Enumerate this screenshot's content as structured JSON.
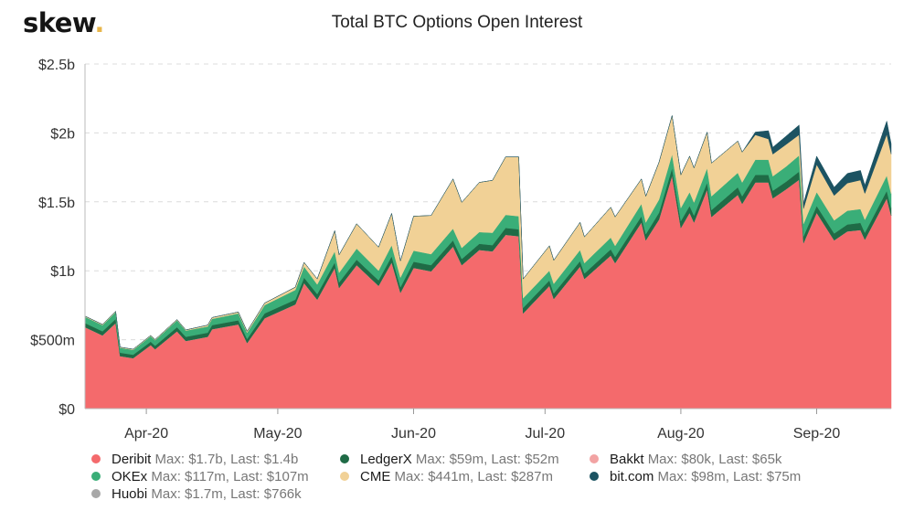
{
  "brand": {
    "name": "skew",
    "dot": "."
  },
  "chart_data": {
    "type": "area",
    "stacked": true,
    "title": "Total BTC Options Open Interest",
    "xlabel": "",
    "ylabel": "",
    "xlim": [
      "2020-03-18",
      "2020-09-18"
    ],
    "ylim": [
      0,
      2500
    ],
    "y_unit": "$m",
    "grid": "horizontal dashed",
    "legend_position": "bottom",
    "y_ticks": [
      {
        "value": 0,
        "label": "$0"
      },
      {
        "value": 500,
        "label": "$500m"
      },
      {
        "value": 1000,
        "label": "$1b"
      },
      {
        "value": 1500,
        "label": "$1.5b"
      },
      {
        "value": 2000,
        "label": "$2b"
      },
      {
        "value": 2500,
        "label": "$2.5b"
      }
    ],
    "x_ticks": [
      {
        "date": "2020-04-01",
        "label": "Apr-20"
      },
      {
        "date": "2020-05-01",
        "label": "May-20"
      },
      {
        "date": "2020-06-01",
        "label": "Jun-20"
      },
      {
        "date": "2020-07-01",
        "label": "Jul-20"
      },
      {
        "date": "2020-08-01",
        "label": "Aug-20"
      },
      {
        "date": "2020-09-01",
        "label": "Sep-20"
      }
    ],
    "x": [
      "2020-03-19",
      "2020-03-22",
      "2020-03-25",
      "2020-03-26",
      "2020-03-29",
      "2020-04-02",
      "2020-04-03",
      "2020-04-08",
      "2020-04-10",
      "2020-04-15",
      "2020-04-16",
      "2020-04-22",
      "2020-04-24",
      "2020-04-28",
      "2020-05-05",
      "2020-05-07",
      "2020-05-10",
      "2020-05-14",
      "2020-05-15",
      "2020-05-19",
      "2020-05-24",
      "2020-05-27",
      "2020-05-29",
      "2020-06-01",
      "2020-06-05",
      "2020-06-10",
      "2020-06-12",
      "2020-06-16",
      "2020-06-19",
      "2020-06-22",
      "2020-06-25",
      "2020-06-26",
      "2020-07-02",
      "2020-07-03",
      "2020-07-09",
      "2020-07-10",
      "2020-07-16",
      "2020-07-17",
      "2020-07-23",
      "2020-07-24",
      "2020-07-27",
      "2020-07-30",
      "2020-08-01",
      "2020-08-03",
      "2020-08-04",
      "2020-08-07",
      "2020-08-08",
      "2020-08-14",
      "2020-08-15",
      "2020-08-18",
      "2020-08-21",
      "2020-08-22",
      "2020-08-25",
      "2020-08-28",
      "2020-08-29",
      "2020-09-01",
      "2020-09-05",
      "2020-09-08",
      "2020-09-11",
      "2020-09-12",
      "2020-09-17",
      "2020-09-18"
    ],
    "series": [
      {
        "name": "Deribit",
        "color": "#f46a6c",
        "max": "$1.7b",
        "last": "$1.4b",
        "values": [
          590,
          530,
          620,
          380,
          365,
          460,
          430,
          560,
          490,
          520,
          575,
          610,
          475,
          655,
          755,
          910,
          790,
          1020,
          875,
          1040,
          890,
          1060,
          840,
          1020,
          995,
          1175,
          1040,
          1150,
          1140,
          1260,
          1250,
          690,
          890,
          795,
          1030,
          940,
          1110,
          1055,
          1350,
          1220,
          1370,
          1690,
          1310,
          1420,
          1350,
          1590,
          1390,
          1550,
          1485,
          1640,
          1640,
          1525,
          1590,
          1660,
          1200,
          1420,
          1220,
          1285,
          1295,
          1225,
          1525,
          1400
        ]
      },
      {
        "name": "Huobi",
        "color": "#a8a8a8",
        "max": "$1.7m",
        "last": "$766k",
        "values": [
          1,
          1,
          1,
          1,
          1,
          1,
          1,
          1,
          1,
          1,
          1,
          1,
          1,
          1,
          1,
          1,
          1,
          1,
          1,
          1,
          1,
          1,
          1,
          1,
          1,
          1,
          1,
          1,
          1,
          1,
          1,
          1,
          1,
          1,
          1,
          1,
          1,
          1,
          1,
          1,
          1,
          1,
          1,
          1,
          1,
          1,
          1,
          1,
          1,
          1,
          1,
          1,
          1,
          1,
          1,
          1,
          1,
          1,
          1,
          1,
          1,
          0.8
        ]
      },
      {
        "name": "Bakkt",
        "color": "#f2a3a3",
        "max": "$80k",
        "last": "$65k",
        "values": [
          0,
          0,
          0,
          0,
          0,
          0,
          0,
          0,
          0,
          0,
          0,
          0,
          0,
          0,
          0,
          0,
          0,
          0,
          0,
          0,
          0,
          0,
          0,
          0,
          0,
          0,
          0,
          0,
          0,
          0,
          0,
          0,
          0,
          0,
          0,
          0,
          0,
          0,
          0,
          0,
          0,
          0,
          0,
          0,
          0,
          0,
          0,
          0,
          0,
          0,
          0,
          0,
          0,
          0,
          0,
          0,
          0,
          0,
          0,
          0,
          0.08,
          0.065
        ]
      },
      {
        "name": "LedgerX",
        "color": "#1f6b46",
        "max": "$59m",
        "last": "$52m",
        "values": [
          30,
          30,
          30,
          25,
          25,
          25,
          25,
          30,
          30,
          30,
          30,
          30,
          30,
          35,
          35,
          40,
          40,
          40,
          40,
          40,
          40,
          45,
          40,
          45,
          45,
          45,
          45,
          45,
          45,
          50,
          50,
          40,
          40,
          40,
          40,
          40,
          45,
          45,
          45,
          45,
          50,
          55,
          50,
          50,
          50,
          50,
          50,
          55,
          55,
          55,
          55,
          55,
          55,
          59,
          50,
          50,
          50,
          50,
          52,
          50,
          55,
          52
        ]
      },
      {
        "name": "OKEx",
        "color": "#3aae78",
        "max": "$117m",
        "last": "$107m",
        "values": [
          45,
          45,
          50,
          35,
          35,
          40,
          40,
          50,
          45,
          45,
          45,
          50,
          45,
          60,
          70,
          80,
          70,
          80,
          70,
          80,
          70,
          80,
          70,
          80,
          80,
          85,
          80,
          85,
          90,
          95,
          95,
          70,
          70,
          70,
          80,
          75,
          85,
          80,
          90,
          85,
          95,
          100,
          95,
          100,
          95,
          105,
          100,
          105,
          100,
          110,
          110,
          105,
          110,
          117,
          90,
          100,
          95,
          100,
          100,
          95,
          110,
          107
        ]
      },
      {
        "name": "CME",
        "color": "#f1d196",
        "max": "$441m",
        "last": "$287m",
        "values": [
          5,
          5,
          5,
          5,
          5,
          5,
          5,
          5,
          5,
          10,
          10,
          10,
          10,
          15,
          20,
          30,
          40,
          150,
          130,
          180,
          170,
          230,
          120,
          250,
          280,
          360,
          330,
          360,
          380,
          420,
          430,
          140,
          180,
          170,
          200,
          190,
          220,
          210,
          180,
          190,
          270,
          280,
          240,
          260,
          250,
          260,
          240,
          230,
          220,
          180,
          150,
          160,
          160,
          150,
          110,
          200,
          180,
          200,
          210,
          190,
          300,
          287
        ]
      },
      {
        "name": "bit.com",
        "color": "#1c5362",
        "max": "$98m",
        "last": "$75m",
        "values": [
          0,
          0,
          0,
          0,
          0,
          0,
          0,
          0,
          0,
          0,
          0,
          0,
          0,
          0,
          0,
          0,
          0,
          0,
          0,
          0,
          0,
          0,
          0,
          0,
          0,
          0,
          0,
          0,
          0,
          0,
          0,
          0,
          0,
          0,
          0,
          0,
          0,
          0,
          0,
          0,
          0,
          0,
          0,
          0,
          0,
          0,
          0,
          0,
          0,
          20,
          60,
          50,
          60,
          70,
          40,
          60,
          60,
          70,
          70,
          60,
          95,
          75
        ]
      }
    ],
    "legend": [
      {
        "series": "Deribit",
        "label": "Deribit",
        "stats": "Max: $1.7b, Last: $1.4b"
      },
      {
        "series": "LedgerX",
        "label": "LedgerX",
        "stats": "Max: $59m, Last: $52m"
      },
      {
        "series": "Bakkt",
        "label": "Bakkt",
        "stats": "Max: $80k, Last: $65k"
      },
      {
        "series": "OKEx",
        "label": "OKEx",
        "stats": "Max: $117m, Last: $107m"
      },
      {
        "series": "CME",
        "label": "CME",
        "stats": "Max: $441m, Last: $287m"
      },
      {
        "series": "bit.com",
        "label": "bit.com",
        "stats": "Max: $98m, Last: $75m"
      },
      {
        "series": "Huobi",
        "label": "Huobi",
        "stats": "Max: $1.7m, Last: $766k"
      }
    ]
  }
}
